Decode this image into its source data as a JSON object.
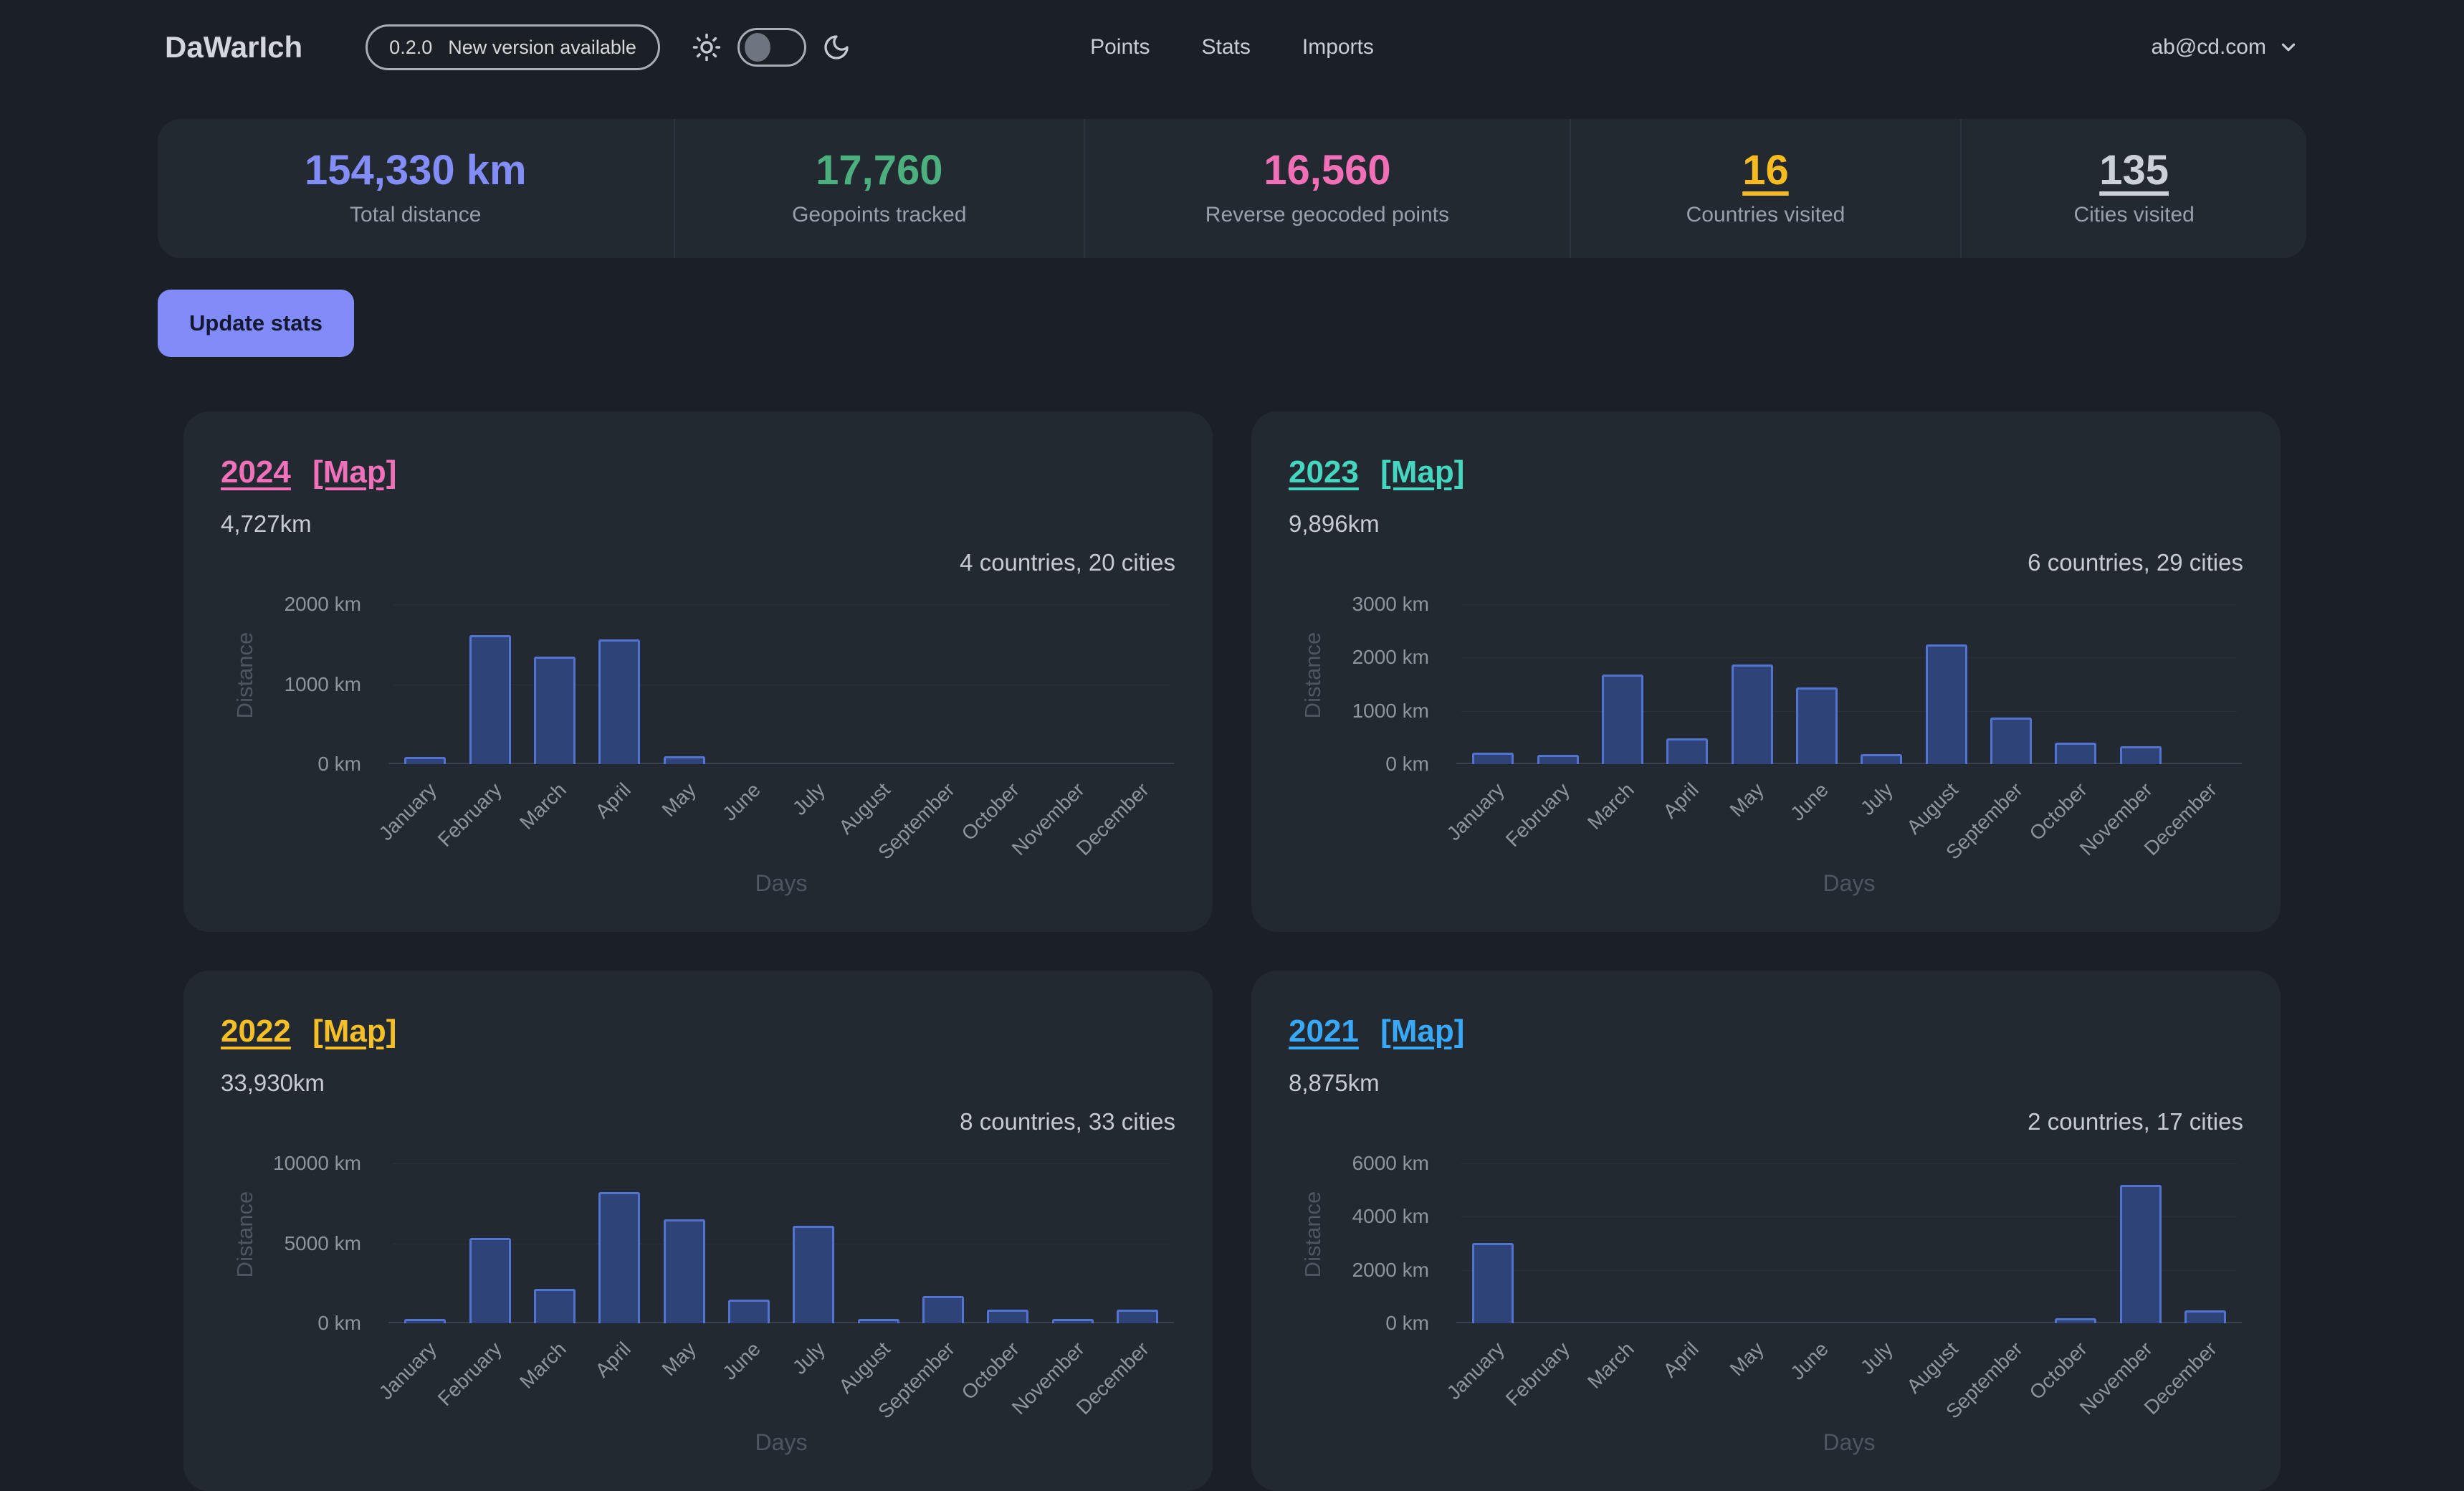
{
  "header": {
    "logo": "DaWarIch",
    "version_badge": {
      "version": "0.2.0",
      "text": "New version available"
    },
    "nav": [
      {
        "label": "Points"
      },
      {
        "label": "Stats"
      },
      {
        "label": "Imports"
      }
    ],
    "user_email": "ab@cd.com",
    "icons": [
      "sun-icon",
      "theme-toggle",
      "moon-icon",
      "chevron-down-icon"
    ]
  },
  "stats": [
    {
      "name": "total-distance",
      "value": "154,330 km",
      "label": "Total distance",
      "color": "#828df8",
      "link": false
    },
    {
      "name": "geopoints-tracked",
      "value": "17,760",
      "label": "Geopoints tracked",
      "color": "#4caf7e",
      "link": false
    },
    {
      "name": "reverse-geocoded-points",
      "value": "16,560",
      "label": "Reverse geocoded points",
      "color": "#f06fb6",
      "link": false
    },
    {
      "name": "countries-visited",
      "value": "16",
      "label": "Countries visited",
      "color": "#f5bb1f",
      "link": true
    },
    {
      "name": "cities-visited",
      "value": "135",
      "label": "Cities visited",
      "color": "#ccd1d9",
      "link": true
    }
  ],
  "update_button_label": "Update stats",
  "colors": {
    "page_bg": "#1a2026",
    "card_bg": "#222931",
    "bar_fill": "#2e4377",
    "bar_border": "#5373d0",
    "button_bg": "#828cf8",
    "axis_text": "#8f959d",
    "axis_title": "#50565f"
  },
  "chart_data": [
    {
      "type": "bar",
      "year": "2024",
      "map_label": "[Map]",
      "accent": "#f170ba",
      "total": "4,727km",
      "summary": "4 countries, 20 cities",
      "xlabel": "Days",
      "ylabel": "Distance",
      "categories": [
        "January",
        "February",
        "March",
        "April",
        "May",
        "June",
        "July",
        "August",
        "September",
        "October",
        "November",
        "December"
      ],
      "values": [
        90,
        1620,
        1350,
        1565,
        102,
        0,
        0,
        0,
        0,
        0,
        0,
        0
      ],
      "yticks": [
        {
          "label": "2000 km",
          "value": 2000
        },
        {
          "label": "1000 km",
          "value": 1000
        },
        {
          "label": "0 km",
          "value": 0
        }
      ],
      "ylim": [
        0,
        2226
      ],
      "grid": "faint",
      "legend": "none"
    },
    {
      "type": "bar",
      "year": "2023",
      "map_label": "[Map]",
      "accent": "#45d6c0",
      "total": "9,896km",
      "summary": "6 countries, 29 cities",
      "xlabel": "Days",
      "ylabel": "Distance",
      "categories": [
        "January",
        "February",
        "March",
        "April",
        "May",
        "June",
        "July",
        "August",
        "September",
        "October",
        "November",
        "December"
      ],
      "values": [
        210,
        170,
        1680,
        480,
        1870,
        1446,
        185,
        2250,
        870,
        400,
        335,
        0
      ],
      "yticks": [
        {
          "label": "3000 km",
          "value": 3000
        },
        {
          "label": "2000 km",
          "value": 2000
        },
        {
          "label": "1000 km",
          "value": 1000
        },
        {
          "label": "0 km",
          "value": 0
        }
      ],
      "ylim": [
        0,
        3339
      ],
      "grid": "faint",
      "legend": "none"
    },
    {
      "type": "bar",
      "year": "2022",
      "map_label": "[Map]",
      "accent": "#f5bf25",
      "total": "33,930km",
      "summary": "8 countries, 33 cities",
      "xlabel": "Days",
      "ylabel": "Distance",
      "categories": [
        "January",
        "February",
        "March",
        "April",
        "May",
        "June",
        "July",
        "August",
        "September",
        "October",
        "November",
        "December"
      ],
      "values": [
        230,
        5360,
        2150,
        8200,
        6500,
        1500,
        6100,
        200,
        1700,
        870,
        280,
        840
      ],
      "yticks": [
        {
          "label": "10000 km",
          "value": 10000
        },
        {
          "label": "5000 km",
          "value": 5000
        },
        {
          "label": "0 km",
          "value": 0
        }
      ],
      "ylim": [
        0,
        11130
      ],
      "grid": "faint",
      "legend": "none"
    },
    {
      "type": "bar",
      "year": "2021",
      "map_label": "[Map]",
      "accent": "#38a8f8",
      "total": "8,875km",
      "summary": "2 countries, 17 cities",
      "xlabel": "Days",
      "ylabel": "Distance",
      "categories": [
        "January",
        "February",
        "March",
        "April",
        "May",
        "June",
        "July",
        "August",
        "September",
        "October",
        "November",
        "December"
      ],
      "values": [
        3020,
        0,
        0,
        0,
        0,
        0,
        0,
        0,
        0,
        190,
        5190,
        475
      ],
      "yticks": [
        {
          "label": "6000 km",
          "value": 6000
        },
        {
          "label": "4000 km",
          "value": 4000
        },
        {
          "label": "2000 km",
          "value": 2000
        },
        {
          "label": "0 km",
          "value": 0
        }
      ],
      "ylim": [
        0,
        6678
      ],
      "grid": "faint",
      "legend": "none"
    }
  ]
}
